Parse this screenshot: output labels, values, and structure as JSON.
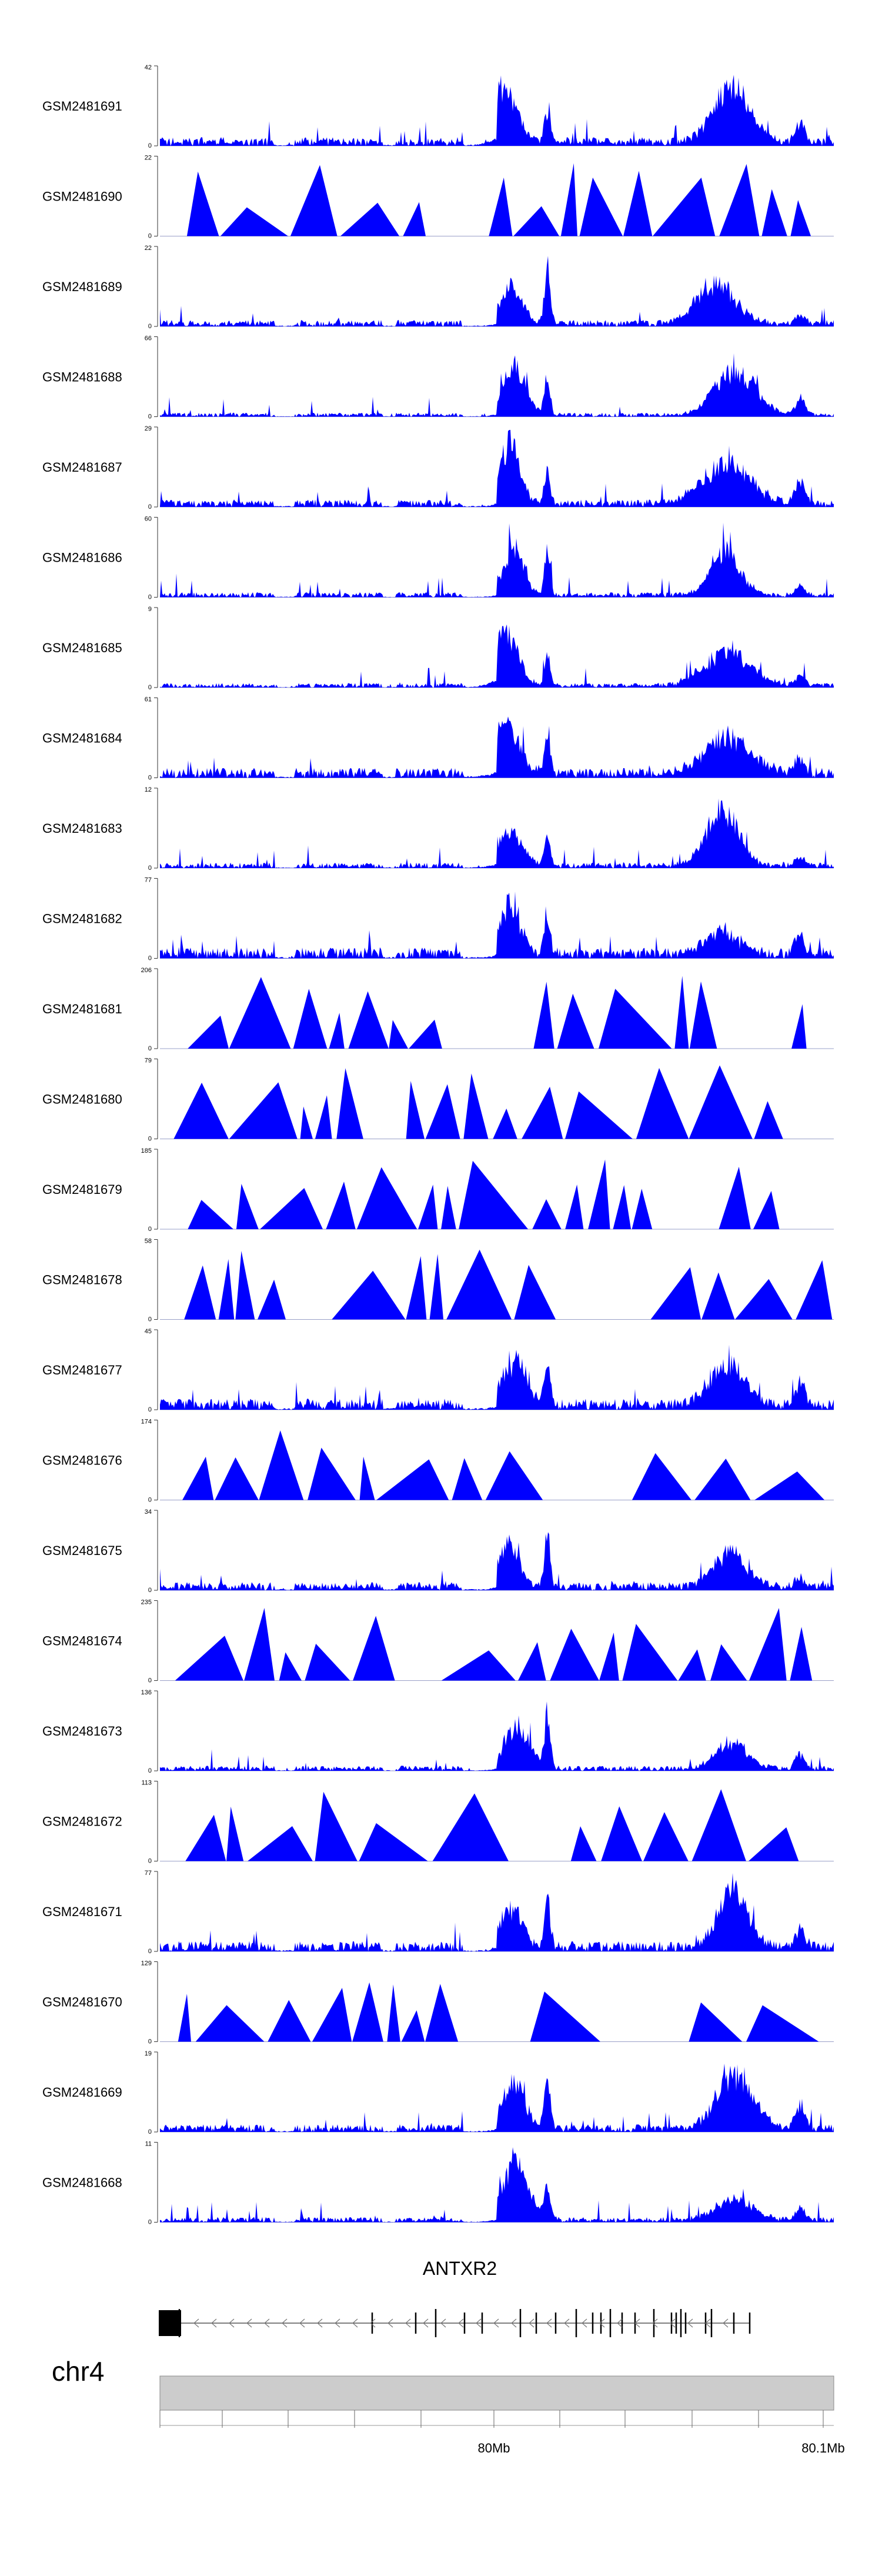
{
  "chart_data": {
    "type": "area",
    "title": "",
    "chromosome": "chr4",
    "gene": {
      "name": "ANTXR2",
      "strand": "-"
    },
    "genome_axis": {
      "ticks": [
        "80Mb",
        "80.1Mb"
      ]
    },
    "fill_color": "#0000ff",
    "baseline_color": "#9aa0c8",
    "tracks": [
      {
        "name": "GSM2481691",
        "ymax": "42",
        "ymin": "0",
        "style": "dense"
      },
      {
        "name": "GSM2481690",
        "ymax": "22",
        "ymin": "0",
        "style": "triangles"
      },
      {
        "name": "GSM2481689",
        "ymax": "22",
        "ymin": "0",
        "style": "dense"
      },
      {
        "name": "GSM2481688",
        "ymax": "66",
        "ymin": "0",
        "style": "dense"
      },
      {
        "name": "GSM2481687",
        "ymax": "29",
        "ymin": "0",
        "style": "dense"
      },
      {
        "name": "GSM2481686",
        "ymax": "60",
        "ymin": "0",
        "style": "dense"
      },
      {
        "name": "GSM2481685",
        "ymax": "9",
        "ymin": "0",
        "style": "dense"
      },
      {
        "name": "GSM2481684",
        "ymax": "61",
        "ymin": "0",
        "style": "dense"
      },
      {
        "name": "GSM2481683",
        "ymax": "12",
        "ymin": "0",
        "style": "dense"
      },
      {
        "name": "GSM2481682",
        "ymax": "77",
        "ymin": "0",
        "style": "dense"
      },
      {
        "name": "GSM2481681",
        "ymax": "206",
        "ymin": "0",
        "style": "triangles"
      },
      {
        "name": "GSM2481680",
        "ymax": "79",
        "ymin": "0",
        "style": "triangles"
      },
      {
        "name": "GSM2481679",
        "ymax": "185",
        "ymin": "0",
        "style": "triangles"
      },
      {
        "name": "GSM2481678",
        "ymax": "58",
        "ymin": "0",
        "style": "triangles"
      },
      {
        "name": "GSM2481677",
        "ymax": "45",
        "ymin": "0",
        "style": "dense"
      },
      {
        "name": "GSM2481676",
        "ymax": "174",
        "ymin": "0",
        "style": "triangles"
      },
      {
        "name": "GSM2481675",
        "ymax": "34",
        "ymin": "0",
        "style": "dense"
      },
      {
        "name": "GSM2481674",
        "ymax": "235",
        "ymin": "0",
        "style": "triangles"
      },
      {
        "name": "GSM2481673",
        "ymax": "136",
        "ymin": "0",
        "style": "dense"
      },
      {
        "name": "GSM2481672",
        "ymax": "113",
        "ymin": "0",
        "style": "triangles"
      },
      {
        "name": "GSM2481671",
        "ymax": "77",
        "ymin": "0",
        "style": "dense"
      },
      {
        "name": "GSM2481670",
        "ymax": "129",
        "ymin": "0",
        "style": "triangles"
      },
      {
        "name": "GSM2481669",
        "ymax": "19",
        "ymin": "0",
        "style": "dense"
      },
      {
        "name": "GSM2481668",
        "ymax": "11",
        "ymin": "0",
        "style": "dense"
      }
    ]
  }
}
